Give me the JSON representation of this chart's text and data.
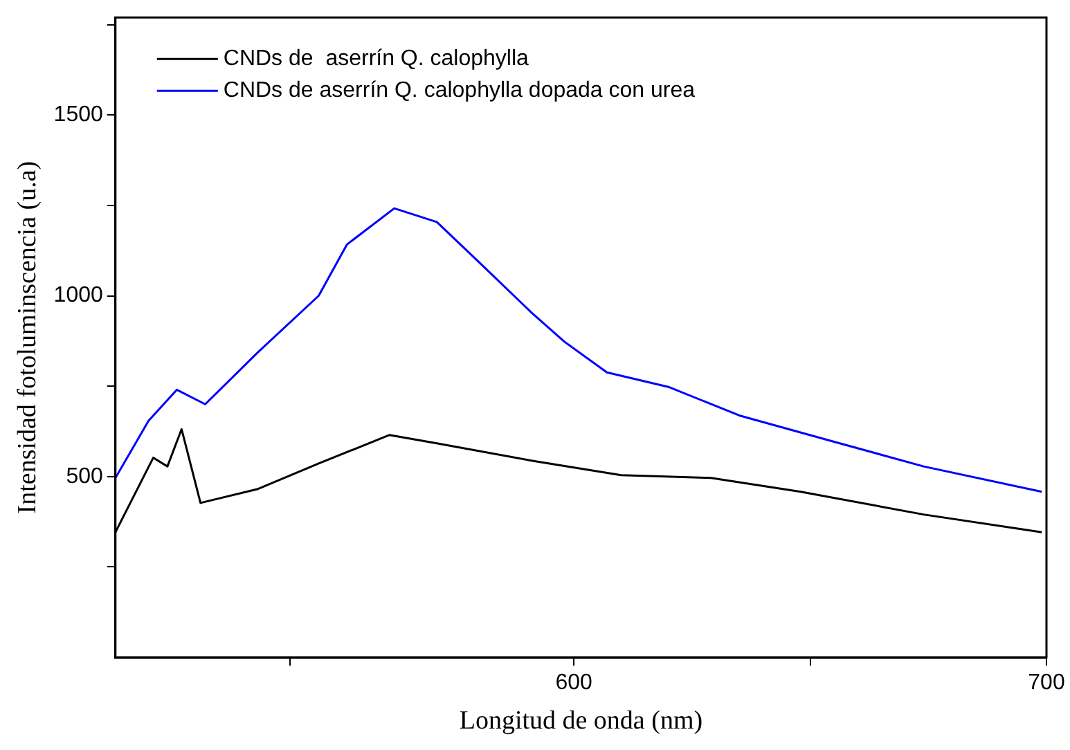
{
  "chart_data": {
    "type": "line",
    "xlabel": "Longitud de onda (nm)",
    "ylabel": "Intensidad fotoluminscencia (u.a)",
    "xlim": [
      503,
      700
    ],
    "xticks": [
      {
        "value": 540,
        "label": null
      },
      600,
      {
        "value": 650,
        "label": null
      },
      700
    ],
    "ylim": [
      0,
      1770
    ],
    "yticks": [
      {
        "value": 250,
        "label": null
      },
      500,
      {
        "value": 750,
        "label": null
      },
      1000,
      {
        "value": 1250,
        "label": null
      },
      1500,
      {
        "value": 1750,
        "label": null
      }
    ],
    "grid": false,
    "legend": "top left",
    "marker": "none",
    "line_style": "solid",
    "series": [
      {
        "name": "CNDs de  aserrín Q. calophylla",
        "color": "#000000",
        "x": [
          503,
          511,
          514,
          517,
          521,
          533,
          546,
          561,
          571,
          591,
          610,
          629,
          648,
          674,
          699
        ],
        "values": [
          346,
          552,
          528,
          631,
          427,
          465,
          536,
          615,
          592,
          544,
          504,
          496,
          458,
          395,
          346
        ]
      },
      {
        "name": "CNDs de aserrín Q. calophylla dopada con urea",
        "color": "#0000ff",
        "x": [
          503,
          510,
          516,
          522,
          533,
          546,
          552,
          562,
          571,
          580,
          591,
          598,
          607,
          620,
          635,
          654,
          674,
          699
        ],
        "values": [
          496,
          654,
          740,
          700,
          842,
          1000,
          1142,
          1242,
          1204,
          1092,
          954,
          873,
          788,
          748,
          669,
          600,
          528,
          458
        ]
      }
    ]
  }
}
